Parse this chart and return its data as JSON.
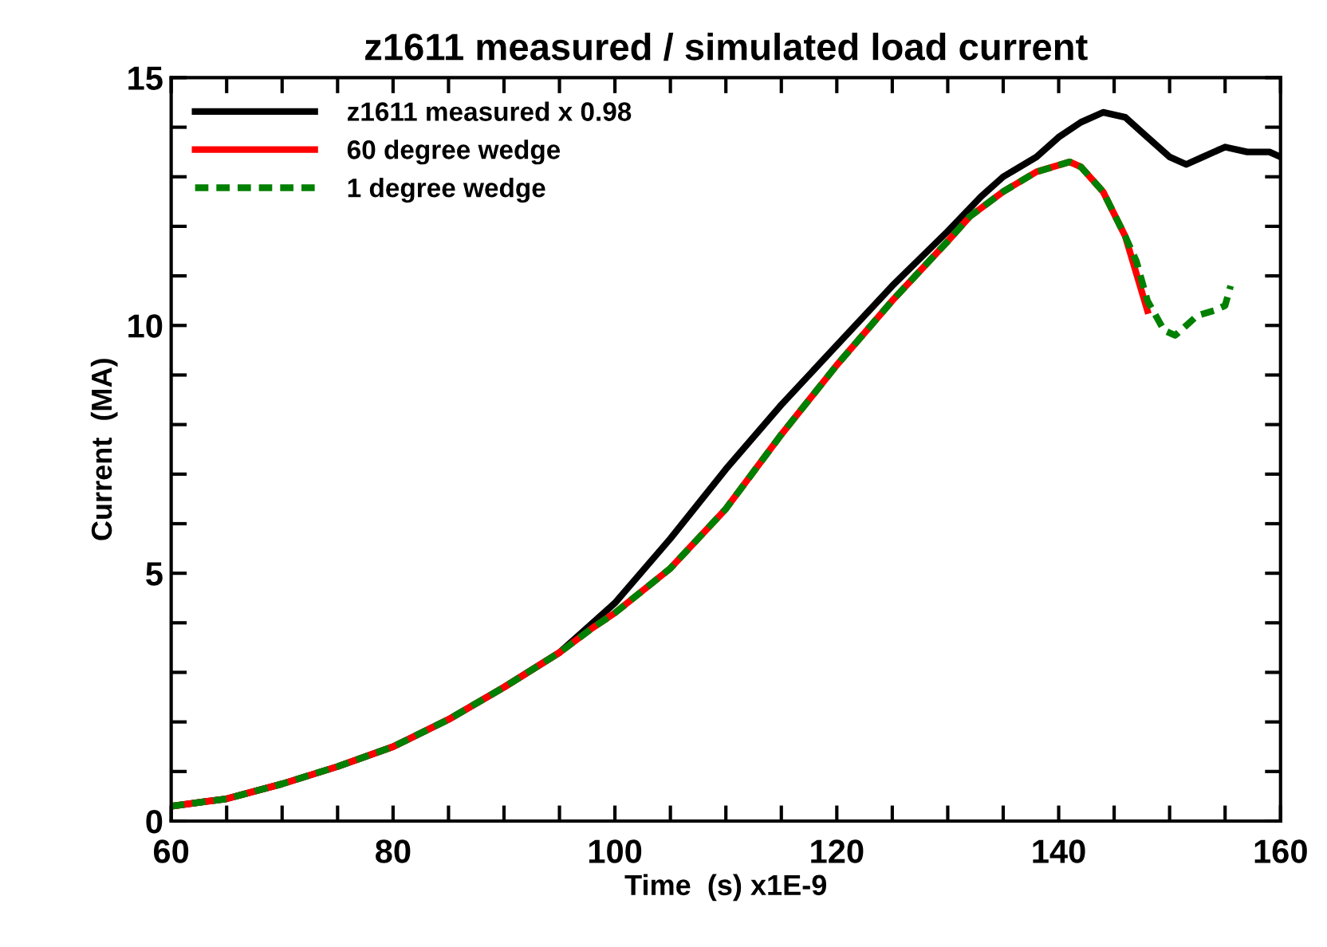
{
  "chart_data": {
    "type": "line",
    "title": "z1611 measured / simulated load current",
    "xlabel": "Time  (s) x1E-9",
    "ylabel": "Current  (MA)",
    "xlim": [
      60,
      160
    ],
    "ylim": [
      0,
      15
    ],
    "xticks": [
      60,
      {
        "value": 65,
        "label": null
      },
      {
        "value": 70,
        "label": null
      },
      {
        "value": 75,
        "label": null
      },
      80,
      {
        "value": 85,
        "label": null
      },
      {
        "value": 90,
        "label": null
      },
      {
        "value": 95,
        "label": null
      },
      100,
      {
        "value": 105,
        "label": null
      },
      {
        "value": 110,
        "label": null
      },
      {
        "value": 115,
        "label": null
      },
      120,
      {
        "value": 125,
        "label": null
      },
      {
        "value": 130,
        "label": null
      },
      {
        "value": 135,
        "label": null
      },
      140,
      {
        "value": 145,
        "label": null
      },
      {
        "value": 150,
        "label": null
      },
      {
        "value": 155,
        "label": null
      },
      160
    ],
    "yticks": [
      0,
      {
        "value": 1,
        "label": null
      },
      {
        "value": 2,
        "label": null
      },
      {
        "value": 3,
        "label": null
      },
      {
        "value": 4,
        "label": null
      },
      5,
      {
        "value": 6,
        "label": null
      },
      {
        "value": 7,
        "label": null
      },
      {
        "value": 8,
        "label": null
      },
      {
        "value": 9,
        "label": null
      },
      10,
      {
        "value": 11,
        "label": null
      },
      {
        "value": 12,
        "label": null
      },
      {
        "value": 13,
        "label": null
      },
      {
        "value": 14,
        "label": null
      },
      15
    ],
    "grid": false,
    "legend": "top left",
    "series": [
      {
        "name": "z1611 measured x 0.98",
        "color": "#000000",
        "line_style": "solid",
        "x": [
          60,
          65,
          70,
          75,
          80,
          85,
          90,
          95,
          98,
          100,
          105,
          110,
          115,
          120,
          125,
          130,
          133,
          135,
          138,
          140,
          142,
          144,
          146,
          148,
          150,
          151.5,
          153,
          155,
          157,
          159,
          160
        ],
        "values": [
          0.3,
          0.45,
          0.75,
          1.1,
          1.5,
          2.05,
          2.7,
          3.4,
          4.0,
          4.4,
          5.7,
          7.1,
          8.4,
          9.6,
          10.8,
          11.9,
          12.6,
          13.0,
          13.4,
          13.8,
          14.1,
          14.3,
          14.2,
          13.8,
          13.4,
          13.25,
          13.4,
          13.6,
          13.5,
          13.5,
          13.4
        ]
      },
      {
        "name": "60 degree wedge",
        "color": "#ff0000",
        "line_style": "solid",
        "x": [
          60,
          65,
          70,
          75,
          80,
          85,
          90,
          95,
          98,
          100,
          105,
          110,
          115,
          120,
          125,
          130,
          132,
          135,
          138,
          141,
          142,
          144,
          146,
          148
        ],
        "values": [
          0.3,
          0.45,
          0.75,
          1.1,
          1.5,
          2.05,
          2.7,
          3.4,
          3.9,
          4.2,
          5.1,
          6.3,
          7.8,
          9.2,
          10.5,
          11.7,
          12.2,
          12.7,
          13.1,
          13.3,
          13.2,
          12.7,
          11.8,
          10.3
        ]
      },
      {
        "name": "1 degree wedge",
        "color": "#008000",
        "line_style": "dashed",
        "x": [
          60,
          65,
          70,
          75,
          80,
          85,
          90,
          95,
          98,
          100,
          105,
          110,
          115,
          120,
          125,
          130,
          132,
          135,
          138,
          141,
          142,
          144,
          146,
          147,
          148,
          149.5,
          150.5,
          151.5,
          152.5,
          154,
          155,
          155.5
        ],
        "values": [
          0.3,
          0.45,
          0.75,
          1.1,
          1.5,
          2.05,
          2.7,
          3.4,
          3.9,
          4.2,
          5.1,
          6.3,
          7.8,
          9.2,
          10.5,
          11.7,
          12.2,
          12.7,
          13.1,
          13.3,
          13.2,
          12.7,
          11.8,
          11.3,
          10.5,
          9.9,
          9.8,
          10.0,
          10.2,
          10.3,
          10.4,
          10.8
        ]
      }
    ]
  }
}
